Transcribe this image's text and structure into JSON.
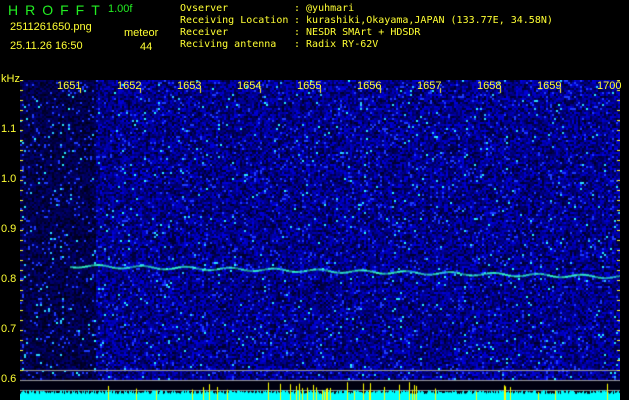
{
  "header": {
    "logo": "HROFFT",
    "version": "1.00f",
    "filename": "2511261650.png",
    "datetime": "25.11.26 16:50",
    "meteor_label": "meteor",
    "meteor_count": "44",
    "info": [
      {
        "label": "Ovserver",
        "value": ": @yuhmari"
      },
      {
        "label": "Receiving Location",
        "value": ": kurashiki,Okayama,JAPAN (133.77E, 34.58N)"
      },
      {
        "label": "Receiver",
        "value": ": NESDR SMArt + HDSDR"
      },
      {
        "label": "Reciving antenna",
        "value": ": Radix RY-62V"
      }
    ]
  },
  "spectrogram": {
    "unit": "kHz",
    "y_ticks": [
      "1.1",
      "1.0",
      "0.9",
      "0.8",
      "0.7",
      "0.6"
    ],
    "time_labels": [
      "1651",
      "1652",
      "1653",
      "1654",
      "1655",
      "1656",
      "1657",
      "1658",
      "1659",
      "1700"
    ],
    "colors": {
      "background": "#000000",
      "noise": "#1a1aff",
      "echo": "#33ffcc",
      "baseline": "#00ffff",
      "marker": "#ffff00",
      "text": "#ffff33"
    }
  }
}
